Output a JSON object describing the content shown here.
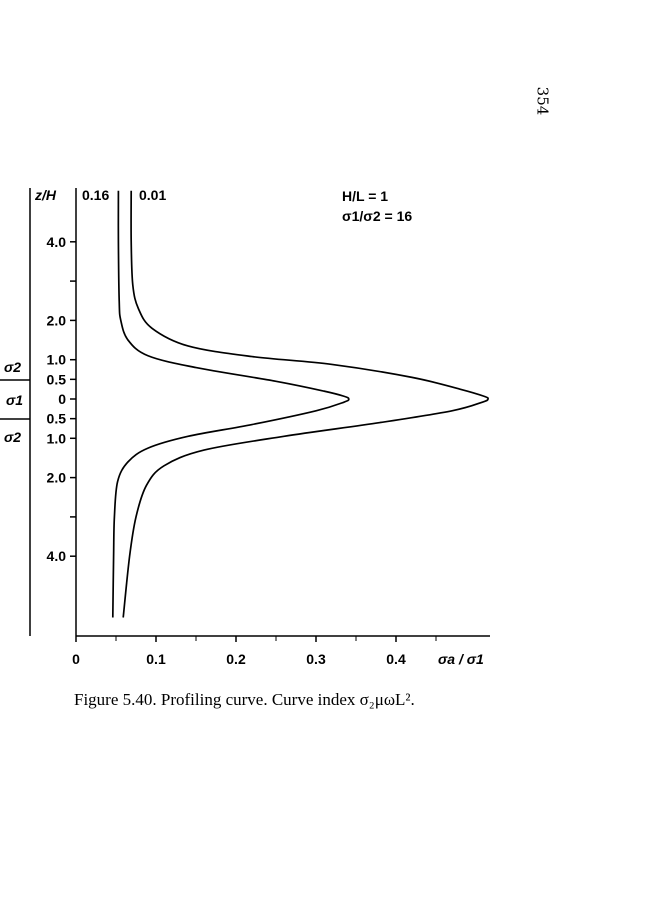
{
  "page_number": "354",
  "caption": "Figure 5.40. Profiling curve. Curve index σ₂μωL².",
  "layer_labels": [
    "σ2",
    "σ1",
    "σ2"
  ],
  "chart_data": {
    "type": "line",
    "title": "",
    "xlabel": "σa / σ1",
    "ylabel": "z/H",
    "xlim": [
      0,
      0.52
    ],
    "ylim": [
      -5.6,
      5.3
    ],
    "x_ticks": [
      {
        "value": 0,
        "label": "0"
      },
      {
        "value": 0.1,
        "label": "0.1"
      },
      {
        "value": 0.2,
        "label": "0.2"
      },
      {
        "value": 0.3,
        "label": "0.3"
      },
      {
        "value": 0.4,
        "label": "0.4"
      }
    ],
    "y_ticks": [
      {
        "value": 4,
        "label": "4.0"
      },
      {
        "value": 3,
        "label": ""
      },
      {
        "value": 2,
        "label": "2.0"
      },
      {
        "value": 1,
        "label": "1.0"
      },
      {
        "value": 0.5,
        "label": "0.5"
      },
      {
        "value": 0,
        "label": "0"
      },
      {
        "value": -0.5,
        "label": "0.5"
      },
      {
        "value": -1,
        "label": "1.0"
      },
      {
        "value": -2,
        "label": "2.0"
      },
      {
        "value": -3,
        "label": ""
      },
      {
        "value": -4,
        "label": "4.0"
      }
    ],
    "annotations": [
      "H/L = 1",
      "σ1/σ2 = 16"
    ],
    "grid": false,
    "series": [
      {
        "name": "0.16",
        "x": [
          0.053,
          0.053,
          0.054,
          0.056,
          0.065,
          0.09,
          0.15,
          0.25,
          0.31,
          0.335,
          0.341,
          0.335,
          0.3,
          0.22,
          0.14,
          0.09,
          0.065,
          0.052,
          0.048,
          0.047,
          0.046
        ],
        "y": [
          5.3,
          4,
          2.5,
          2,
          1.5,
          1.1,
          0.8,
          0.45,
          0.2,
          0.07,
          0,
          -0.08,
          -0.3,
          -0.65,
          -0.95,
          -1.25,
          -1.6,
          -2.1,
          -3,
          -4,
          -5.56
        ]
      },
      {
        "name": "0.01",
        "x": [
          0.069,
          0.069,
          0.071,
          0.078,
          0.095,
          0.14,
          0.22,
          0.32,
          0.42,
          0.48,
          0.51,
          0.515,
          0.508,
          0.47,
          0.38,
          0.26,
          0.16,
          0.11,
          0.088,
          0.075,
          0.067,
          0.059
        ],
        "y": [
          5.3,
          4,
          2.9,
          2.3,
          1.8,
          1.35,
          1.08,
          0.88,
          0.55,
          0.25,
          0.07,
          0,
          -0.08,
          -0.3,
          -0.6,
          -0.95,
          -1.3,
          -1.7,
          -2.2,
          -3,
          -4,
          -5.56
        ]
      }
    ]
  }
}
